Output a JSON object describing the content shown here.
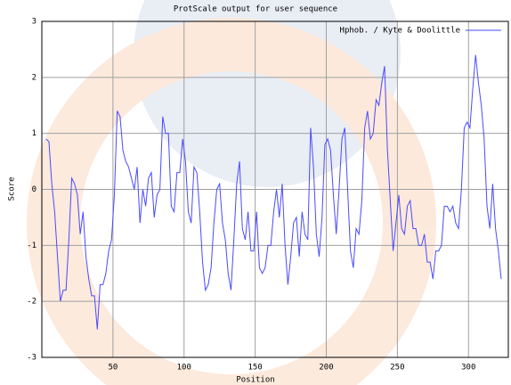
{
  "chart_data": {
    "type": "line",
    "title": "ProtScale output for user sequence",
    "x_label": "Position",
    "y_label": "Score",
    "xlim": [
      0,
      328
    ],
    "xticks": [
      50,
      100,
      150,
      200,
      250,
      300
    ],
    "ylim": [
      -3,
      3
    ],
    "yticks": [
      -3,
      -2,
      -1,
      0,
      1,
      2,
      3
    ],
    "grid": true,
    "legend": "top-right",
    "x": [
      3,
      5,
      7,
      9,
      11,
      13,
      15,
      17,
      19,
      21,
      23,
      25,
      27,
      29,
      31,
      33,
      35,
      37,
      39,
      41,
      43,
      45,
      47,
      49,
      51,
      53,
      55,
      57,
      59,
      61,
      63,
      65,
      67,
      69,
      71,
      73,
      75,
      77,
      79,
      81,
      83,
      85,
      87,
      89,
      91,
      93,
      95,
      97,
      99,
      101,
      103,
      105,
      107,
      109,
      111,
      113,
      115,
      117,
      119,
      121,
      123,
      125,
      127,
      129,
      131,
      133,
      135,
      137,
      139,
      141,
      143,
      145,
      147,
      149,
      151,
      153,
      155,
      157,
      159,
      161,
      163,
      165,
      167,
      169,
      171,
      173,
      175,
      177,
      179,
      181,
      183,
      185,
      187,
      189,
      191,
      193,
      195,
      197,
      199,
      201,
      203,
      205,
      207,
      209,
      211,
      213,
      215,
      217,
      219,
      221,
      223,
      225,
      227,
      229,
      231,
      233,
      235,
      237,
      239,
      241,
      243,
      245,
      247,
      249,
      251,
      253,
      255,
      257,
      259,
      261,
      263,
      265,
      267,
      269,
      271,
      273,
      275,
      277,
      279,
      281,
      283,
      285,
      287,
      289,
      291,
      293,
      295,
      297,
      299,
      301,
      303,
      305,
      307,
      309,
      311,
      313,
      315,
      317,
      319,
      321,
      323
    ],
    "series": [
      {
        "name": "Hphob. / Kyte & Doolittle",
        "color": "#4a4aff",
        "values": [
          0.9,
          0.85,
          0.1,
          -0.4,
          -1.2,
          -2.0,
          -1.8,
          -1.8,
          -0.9,
          0.2,
          0.1,
          -0.1,
          -0.8,
          -0.4,
          -1.2,
          -1.6,
          -1.9,
          -1.9,
          -2.5,
          -1.7,
          -1.7,
          -1.5,
          -1.1,
          -0.9,
          -0.1,
          1.4,
          1.3,
          0.7,
          0.5,
          0.4,
          0.2,
          0.0,
          0.4,
          -0.6,
          0.0,
          -0.3,
          0.2,
          0.3,
          -0.5,
          -0.1,
          0.0,
          1.3,
          1.0,
          1.0,
          -0.3,
          -0.4,
          0.3,
          0.3,
          0.9,
          0.5,
          -0.4,
          -0.6,
          0.4,
          0.3,
          -0.4,
          -1.3,
          -1.8,
          -1.7,
          -1.4,
          -0.6,
          0.0,
          0.1,
          -0.6,
          -0.9,
          -1.5,
          -1.8,
          -0.9,
          0.1,
          0.5,
          -0.7,
          -0.9,
          -0.4,
          -1.1,
          -1.1,
          -0.4,
          -1.4,
          -1.5,
          -1.4,
          -1.0,
          -1.0,
          -0.4,
          0.0,
          -0.5,
          0.1,
          -1.0,
          -1.7,
          -1.2,
          -0.6,
          -0.5,
          -1.2,
          -0.4,
          -0.8,
          -0.9,
          1.1,
          0.4,
          -0.8,
          -1.2,
          -0.5,
          0.8,
          0.9,
          0.7,
          -0.1,
          -0.8,
          0.0,
          0.9,
          1.1,
          0.0,
          -1.1,
          -1.4,
          -0.7,
          -0.8,
          -0.2,
          1.1,
          1.4,
          0.9,
          1.0,
          1.6,
          1.5,
          1.9,
          2.2,
          0.7,
          -0.2,
          -1.1,
          -0.6,
          -0.1,
          -0.7,
          -0.8,
          -0.3,
          -0.2,
          -0.7,
          -0.7,
          -1.0,
          -1.0,
          -0.8,
          -1.3,
          -1.3,
          -1.6,
          -1.1,
          -1.1,
          -1.0,
          -0.3,
          -0.3,
          -0.4,
          -0.3,
          -0.6,
          -0.7,
          0.0,
          1.1,
          1.2,
          1.1,
          1.8,
          2.4,
          1.9,
          1.5,
          0.9,
          -0.3,
          -0.7,
          0.1,
          -0.7,
          -1.1,
          -1.6
        ]
      }
    ]
  }
}
